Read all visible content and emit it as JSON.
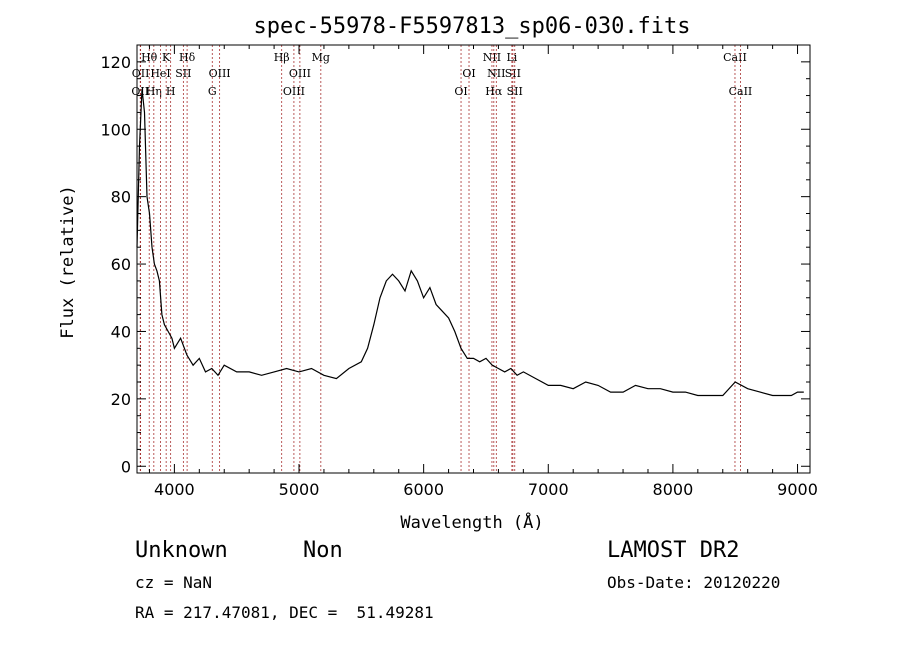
{
  "chart_data": {
    "type": "line",
    "title": "spec-55978-F5597813_sp06-030.fits",
    "xlabel": "Wavelength (Å)",
    "ylabel": "Flux (relative)",
    "xlim": [
      3700,
      9100
    ],
    "ylim": [
      -2,
      125
    ],
    "xticks": [
      4000,
      5000,
      6000,
      7000,
      8000,
      9000
    ],
    "yticks": [
      0,
      20,
      40,
      60,
      80,
      100,
      120
    ],
    "grid": false,
    "series": [
      {
        "color": "#000000",
        "x": [
          3700,
          3720,
          3740,
          3760,
          3780,
          3800,
          3820,
          3840,
          3860,
          3880,
          3900,
          3920,
          3950,
          3980,
          4000,
          4050,
          4100,
          4150,
          4200,
          4250,
          4300,
          4350,
          4400,
          4500,
          4600,
          4700,
          4800,
          4900,
          5000,
          5100,
          5200,
          5300,
          5400,
          5500,
          5550,
          5600,
          5650,
          5700,
          5750,
          5800,
          5850,
          5900,
          5950,
          6000,
          6050,
          6100,
          6150,
          6200,
          6250,
          6300,
          6350,
          6400,
          6450,
          6500,
          6550,
          6600,
          6650,
          6700,
          6750,
          6800,
          6900,
          7000,
          7100,
          7200,
          7300,
          7400,
          7500,
          7600,
          7700,
          7800,
          7900,
          8000,
          8100,
          8200,
          8300,
          8400,
          8500,
          8600,
          8700,
          8800,
          8850,
          8900,
          8950,
          9000,
          9050
        ],
        "y": [
          65,
          95,
          112,
          105,
          80,
          75,
          65,
          60,
          58,
          55,
          45,
          42,
          40,
          38,
          35,
          38,
          33,
          30,
          32,
          28,
          29,
          27,
          30,
          28,
          28,
          27,
          28,
          29,
          28,
          29,
          27,
          26,
          29,
          31,
          35,
          42,
          50,
          55,
          57,
          55,
          52,
          58,
          55,
          50,
          53,
          48,
          46,
          44,
          40,
          35,
          32,
          32,
          31,
          32,
          30,
          29,
          28,
          29,
          27,
          28,
          26,
          24,
          24,
          23,
          25,
          24,
          22,
          22,
          24,
          23,
          23,
          22,
          22,
          21,
          21,
          21,
          25,
          23,
          22,
          21,
          21,
          21,
          21,
          22,
          22
        ]
      }
    ],
    "lines": [
      {
        "wavelength": 3726,
        "label": "OII",
        "row": 2
      },
      {
        "wavelength": 3729,
        "label": "OII",
        "row": 1
      },
      {
        "wavelength": 3798,
        "label": "Hθ",
        "row": 0
      },
      {
        "wavelength": 3835,
        "label": "Hη",
        "row": 2
      },
      {
        "wavelength": 3889,
        "label": "HeI",
        "row": 1
      },
      {
        "wavelength": 3934,
        "label": "K",
        "row": 0
      },
      {
        "wavelength": 3970,
        "label": "H",
        "row": 2
      },
      {
        "wavelength": 4072,
        "label": "SII",
        "row": 1
      },
      {
        "wavelength": 4102,
        "label": "Hδ",
        "row": 0
      },
      {
        "wavelength": 4304,
        "label": "G",
        "row": 2
      },
      {
        "wavelength": 4363,
        "label": "OIII",
        "row": 1
      },
      {
        "wavelength": 4861,
        "label": "Hβ",
        "row": 0
      },
      {
        "wavelength": 4959,
        "label": "OIII",
        "row": 2
      },
      {
        "wavelength": 5007,
        "label": "OIII",
        "row": 1
      },
      {
        "wavelength": 5175,
        "label": "Mg",
        "row": 0
      },
      {
        "wavelength": 6300,
        "label": "OI",
        "row": 2
      },
      {
        "wavelength": 6364,
        "label": "OI",
        "row": 1
      },
      {
        "wavelength": 6548,
        "label": "NII",
        "row": 0
      },
      {
        "wavelength": 6563,
        "label": "Hα",
        "row": 2
      },
      {
        "wavelength": 6583,
        "label": "NII",
        "row": 1
      },
      {
        "wavelength": 6708,
        "label": "Li",
        "row": 0
      },
      {
        "wavelength": 6716,
        "label": "SII",
        "row": 1
      },
      {
        "wavelength": 6731,
        "label": "SII",
        "row": 2
      },
      {
        "wavelength": 8498,
        "label": "CaII",
        "row": 0
      },
      {
        "wavelength": 8542,
        "label": "CaII",
        "row": 2
      }
    ]
  },
  "info": {
    "class": "Unknown",
    "subclass": "Non",
    "survey": "LAMOST DR2",
    "cz": "cz = NaN",
    "obs_date": "Obs-Date: 20120220",
    "coords": "RA = 217.47081, DEC =  51.49281"
  }
}
